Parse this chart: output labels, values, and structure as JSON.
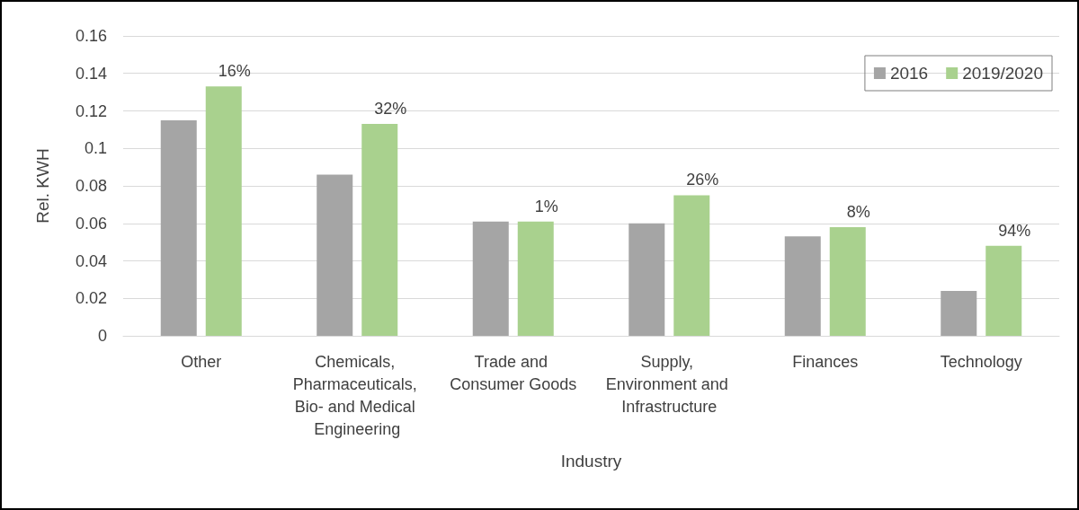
{
  "chart_data": {
    "type": "bar",
    "xlabel": "Industry",
    "ylabel": "Rel. KWH",
    "categories": [
      "Other",
      "Chemicals, Pharmaceuticals, Bio- and Medical Engineering",
      "Trade and Consumer Goods",
      "Supply, Environment and Infrastructure",
      "Finances",
      "Technology"
    ],
    "series": [
      {
        "name": "2016",
        "color": "#a5a5a5",
        "values": [
          0.115,
          0.086,
          0.061,
          0.06,
          0.053,
          0.024
        ]
      },
      {
        "name": "2019/2020",
        "color": "#a9d18e",
        "values": [
          0.133,
          0.113,
          0.061,
          0.075,
          0.058,
          0.048
        ]
      }
    ],
    "ylim": [
      0,
      0.16
    ],
    "yticks": [
      0,
      0.02,
      0.04,
      0.06,
      0.08,
      0.1,
      0.12,
      0.14,
      0.16
    ],
    "grid": "y",
    "legend": "top right",
    "annotations": [
      "16%",
      "32%",
      "1%",
      "26%",
      "8%",
      "94%"
    ]
  }
}
